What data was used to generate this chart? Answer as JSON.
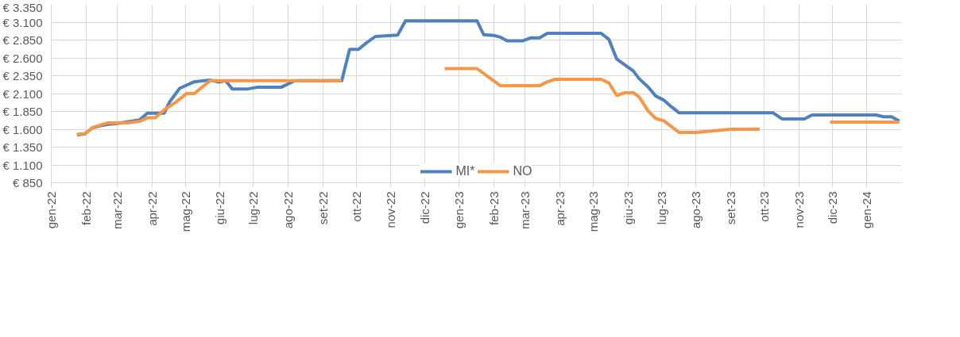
{
  "chart_data": {
    "type": "line",
    "xlim": [
      "2022-01-01",
      "2024-02-01"
    ],
    "xticks": [
      {
        "value": "2022-01-01",
        "label": "gen-22"
      },
      {
        "value": "2022-02-01",
        "label": "feb-22"
      },
      {
        "value": "2022-03-01",
        "label": "mar-22"
      },
      {
        "value": "2022-04-01",
        "label": "apr-22"
      },
      {
        "value": "2022-05-01",
        "label": "mag-22"
      },
      {
        "value": "2022-06-01",
        "label": "giu-22"
      },
      {
        "value": "2022-07-01",
        "label": "lug-22"
      },
      {
        "value": "2022-08-01",
        "label": "ago-22"
      },
      {
        "value": "2022-09-01",
        "label": "set-22"
      },
      {
        "value": "2022-10-01",
        "label": "ott-22"
      },
      {
        "value": "2022-11-01",
        "label": "nov-22"
      },
      {
        "value": "2022-12-01",
        "label": "dic-22"
      },
      {
        "value": "2023-01-01",
        "label": "gen-23"
      },
      {
        "value": "2023-02-01",
        "label": "feb-23"
      },
      {
        "value": "2023-03-01",
        "label": "mar-23"
      },
      {
        "value": "2023-04-01",
        "label": "apr-23"
      },
      {
        "value": "2023-05-01",
        "label": "mag-23"
      },
      {
        "value": "2023-06-01",
        "label": "giu-23"
      },
      {
        "value": "2023-07-01",
        "label": "lug-23"
      },
      {
        "value": "2023-08-01",
        "label": "ago-23"
      },
      {
        "value": "2023-09-01",
        "label": "set-23"
      },
      {
        "value": "2023-10-01",
        "label": "ott-23"
      },
      {
        "value": "2023-11-01",
        "label": "nov-23"
      },
      {
        "value": "2023-12-01",
        "label": "dic-23"
      },
      {
        "value": "2024-01-01",
        "label": "gen-24"
      }
    ],
    "ylim": [
      850,
      3350
    ],
    "yticks": [
      {
        "value": 850,
        "label": "€ 850"
      },
      {
        "value": 1100,
        "label": "€ 1.100"
      },
      {
        "value": 1350,
        "label": "€ 1.350"
      },
      {
        "value": 1600,
        "label": "€ 1.600"
      },
      {
        "value": 1850,
        "label": "€ 1.850"
      },
      {
        "value": 2100,
        "label": "€ 2.100"
      },
      {
        "value": 2350,
        "label": "€ 2.350"
      },
      {
        "value": 2600,
        "label": "€ 2.600"
      },
      {
        "value": 2850,
        "label": "€ 2.850"
      },
      {
        "value": 3100,
        "label": "€ 3.100"
      },
      {
        "value": 3350,
        "label": "€ 3.350"
      }
    ],
    "grid": true,
    "legend": "bottom",
    "marker": "none",
    "line_style": "solid",
    "series": [
      {
        "name": "MI*",
        "color": "#4f81bd",
        "x": [
          "2022-01-24",
          "2022-01-31",
          "2022-02-07",
          "2022-02-14",
          "2022-02-21",
          "2022-03-01",
          "2022-03-21",
          "2022-03-28",
          "2022-04-12",
          "2022-04-17",
          "2022-04-26",
          "2022-05-09",
          "2022-05-23",
          "2022-05-31",
          "2022-06-06",
          "2022-06-12",
          "2022-06-26",
          "2022-07-05",
          "2022-07-26",
          "2022-08-07",
          "2022-09-18",
          "2022-09-25",
          "2022-10-03",
          "2022-10-10",
          "2022-10-18",
          "2022-11-07",
          "2022-11-14",
          "2023-01-17",
          "2023-01-23",
          "2023-02-01",
          "2023-02-07",
          "2023-02-13",
          "2023-02-27",
          "2023-03-06",
          "2023-03-14",
          "2023-03-21",
          "2023-05-08",
          "2023-05-15",
          "2023-05-22",
          "2023-06-06",
          "2023-06-11",
          "2023-06-19",
          "2023-06-26",
          "2023-07-03",
          "2023-07-10",
          "2023-07-17",
          "2023-10-09",
          "2023-10-17",
          "2023-11-06",
          "2023-11-13",
          "2024-01-09",
          "2024-01-16",
          "2024-01-23",
          "2024-01-30"
        ],
        "values": [
          1520,
          1535,
          1620,
          1650,
          1670,
          1680,
          1730,
          1825,
          1825,
          1985,
          2175,
          2265,
          2290,
          2260,
          2280,
          2165,
          2165,
          2190,
          2190,
          2280,
          2280,
          2720,
          2720,
          2810,
          2900,
          2920,
          3120,
          3120,
          2925,
          2915,
          2890,
          2840,
          2840,
          2880,
          2880,
          2945,
          2945,
          2860,
          2585,
          2415,
          2310,
          2195,
          2065,
          2010,
          1915,
          1830,
          1830,
          1745,
          1745,
          1800,
          1800,
          1775,
          1775,
          1715
        ]
      },
      {
        "name": "NO",
        "color": "#f79646",
        "x": [
          "2022-01-24",
          "2022-01-31",
          "2022-02-07",
          "2022-02-14",
          "2022-02-21",
          "2022-03-10",
          "2022-03-21",
          "2022-03-28",
          "2022-04-04",
          "2022-04-12",
          "2022-04-23",
          "2022-05-02",
          "2022-05-09",
          "2022-05-23",
          "2022-09-18",
          "2022-10-20",
          "2022-12-19",
          "2023-01-17",
          "2023-02-07",
          "2023-03-14",
          "2023-03-21",
          "2023-03-28",
          "2023-05-08",
          "2023-05-15",
          "2023-05-22",
          "2023-05-29",
          "2023-06-06",
          "2023-06-11",
          "2023-06-19",
          "2023-06-26",
          "2023-07-03",
          "2023-07-17",
          "2023-08-01",
          "2023-09-01",
          "2023-09-27",
          "2023-10-30",
          "2023-11-29",
          "2024-01-30"
        ],
        "values": [
          1530,
          1540,
          1620,
          1660,
          1690,
          1690,
          1710,
          1760,
          1760,
          1870,
          1985,
          2100,
          2100,
          2280,
          2280,
          null,
          2450,
          2450,
          2210,
          2210,
          2265,
          2300,
          2300,
          2250,
          2075,
          2110,
          2110,
          2055,
          1860,
          1750,
          1720,
          1555,
          1555,
          1600,
          1600,
          null,
          1700,
          1700
        ]
      }
    ]
  }
}
